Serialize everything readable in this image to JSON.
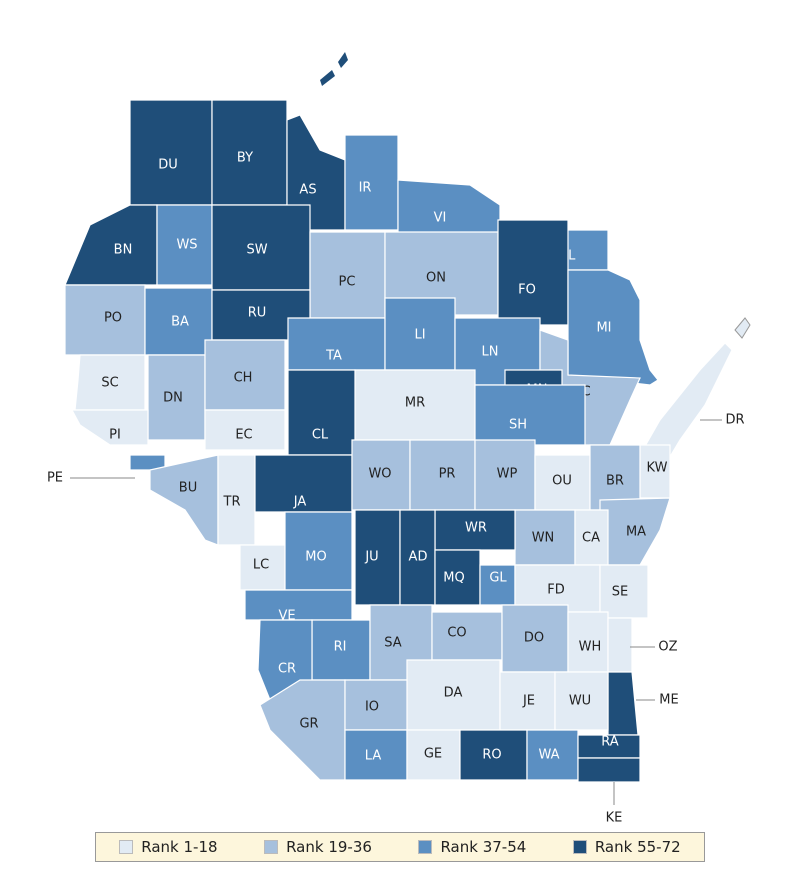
{
  "map": {
    "counties": [
      {
        "label": "DU",
        "color": "#1f4e79"
      },
      {
        "label": "BY",
        "color": "#1f4e79"
      },
      {
        "label": "AS",
        "color": "#1f4e79"
      },
      {
        "label": "IR",
        "color": "#5b8fc2"
      },
      {
        "label": "VI",
        "color": "#5b8fc2"
      },
      {
        "label": "FL",
        "color": "#5b8fc2"
      },
      {
        "label": "BN",
        "color": "#1f4e79"
      },
      {
        "label": "WS",
        "color": "#5b8fc2"
      },
      {
        "label": "SW",
        "color": "#1f4e79"
      },
      {
        "label": "PC",
        "color": "#a6c0dd"
      },
      {
        "label": "ON",
        "color": "#a6c0dd"
      },
      {
        "label": "FO",
        "color": "#1f4e79"
      },
      {
        "label": "MI",
        "color": "#5b8fc2"
      },
      {
        "label": "PO",
        "color": "#a6c0dd"
      },
      {
        "label": "BA",
        "color": "#5b8fc2"
      },
      {
        "label": "RU",
        "color": "#1f4e79"
      },
      {
        "label": "TA",
        "color": "#5b8fc2"
      },
      {
        "label": "LI",
        "color": "#5b8fc2"
      },
      {
        "label": "LN",
        "color": "#5b8fc2"
      },
      {
        "label": "OC",
        "color": "#a6c0dd"
      },
      {
        "label": "MN",
        "color": "#1f4e79"
      },
      {
        "label": "SC",
        "color": "#e2ebf4"
      },
      {
        "label": "DN",
        "color": "#a6c0dd"
      },
      {
        "label": "CH",
        "color": "#a6c0dd"
      },
      {
        "label": "MR",
        "color": "#e2ebf4"
      },
      {
        "label": "DR",
        "color": "#e2ebf4"
      },
      {
        "label": "PI",
        "color": "#e2ebf4"
      },
      {
        "label": "EC",
        "color": "#e2ebf4"
      },
      {
        "label": "CL",
        "color": "#1f4e79"
      },
      {
        "label": "SH",
        "color": "#5b8fc2"
      },
      {
        "label": "KW",
        "color": "#e2ebf4"
      },
      {
        "label": "PE",
        "color": "#5b8fc2"
      },
      {
        "label": "BU",
        "color": "#a6c0dd"
      },
      {
        "label": "TR",
        "color": "#e2ebf4"
      },
      {
        "label": "JA",
        "color": "#1f4e79"
      },
      {
        "label": "WO",
        "color": "#a6c0dd"
      },
      {
        "label": "PR",
        "color": "#a6c0dd"
      },
      {
        "label": "WP",
        "color": "#a6c0dd"
      },
      {
        "label": "OU",
        "color": "#e2ebf4"
      },
      {
        "label": "BR",
        "color": "#a6c0dd"
      },
      {
        "label": "MA",
        "color": "#a6c0dd"
      },
      {
        "label": "WN",
        "color": "#a6c0dd"
      },
      {
        "label": "CA",
        "color": "#e2ebf4"
      },
      {
        "label": "WR",
        "color": "#1f4e79"
      },
      {
        "label": "JU",
        "color": "#1f4e79"
      },
      {
        "label": "AD",
        "color": "#1f4e79"
      },
      {
        "label": "MQ",
        "color": "#1f4e79"
      },
      {
        "label": "GL",
        "color": "#5b8fc2"
      },
      {
        "label": "LC",
        "color": "#e2ebf4"
      },
      {
        "label": "MO",
        "color": "#5b8fc2"
      },
      {
        "label": "FD",
        "color": "#e2ebf4"
      },
      {
        "label": "SE",
        "color": "#e2ebf4"
      },
      {
        "label": "VE",
        "color": "#5b8fc2"
      },
      {
        "label": "RI",
        "color": "#5b8fc2"
      },
      {
        "label": "CR",
        "color": "#5b8fc2"
      },
      {
        "label": "SA",
        "color": "#a6c0dd"
      },
      {
        "label": "CO",
        "color": "#a6c0dd"
      },
      {
        "label": "DO",
        "color": "#a6c0dd"
      },
      {
        "label": "WH",
        "color": "#e2ebf4"
      },
      {
        "label": "OZ",
        "color": "#e2ebf4"
      },
      {
        "label": "ME",
        "color": "#1f4e79"
      },
      {
        "label": "DA",
        "color": "#e2ebf4"
      },
      {
        "label": "JE",
        "color": "#e2ebf4"
      },
      {
        "label": "WU",
        "color": "#e2ebf4"
      },
      {
        "label": "GR",
        "color": "#a6c0dd"
      },
      {
        "label": "IO",
        "color": "#a6c0dd"
      },
      {
        "label": "LA",
        "color": "#5b8fc2"
      },
      {
        "label": "GE",
        "color": "#e2ebf4"
      },
      {
        "label": "RO",
        "color": "#1f4e79"
      },
      {
        "label": "WA",
        "color": "#5b8fc2"
      },
      {
        "label": "RA",
        "color": "#1f4e79"
      },
      {
        "label": "KE",
        "color": "#1f4e79"
      }
    ],
    "legend": [
      {
        "label": "Rank 1-18",
        "color": "#e2ebf4"
      },
      {
        "label": "Rank 19-36",
        "color": "#a6c0dd"
      },
      {
        "label": "Rank 37-54",
        "color": "#5b8fc2"
      },
      {
        "label": "Rank 55-72",
        "color": "#1f4e79"
      }
    ]
  }
}
